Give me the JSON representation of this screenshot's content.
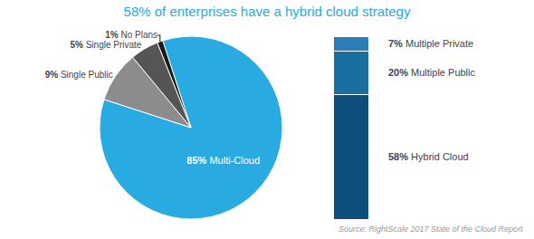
{
  "chart_data": [
    {
      "type": "pie",
      "title": "58% of enterprises have a hybrid cloud strategy",
      "categories": [
        "Multi-Cloud",
        "Single Public",
        "Single Private",
        "No Plans"
      ],
      "values": [
        85,
        9,
        5,
        1
      ],
      "value_labels": [
        "85%",
        "9%",
        "5%",
        "1%"
      ],
      "colors": [
        "#29ABE2",
        "#8C8C8C",
        "#555555",
        "#1A1A1A"
      ],
      "data_labels": true,
      "annotations": [
        "Source: RightScale 2017 State of the Cloud Report"
      ]
    },
    {
      "type": "bar",
      "stacked": true,
      "categories": [
        null
      ],
      "series": [
        {
          "name": "Multiple Private",
          "color": "#2a7db5",
          "values": [
            7
          ],
          "value_labels": [
            "7%"
          ]
        },
        {
          "name": "Multiple Public",
          "color": "#1b6fa0",
          "values": [
            20
          ],
          "value_labels": [
            "20%"
          ]
        },
        {
          "name": "Hybrid Cloud",
          "color": "#0d4f7a",
          "values": [
            58
          ],
          "value_labels": [
            "58%"
          ]
        }
      ],
      "ylim": [
        0,
        85
      ],
      "data_labels": true,
      "tick_labels": false,
      "grid": false
    }
  ]
}
